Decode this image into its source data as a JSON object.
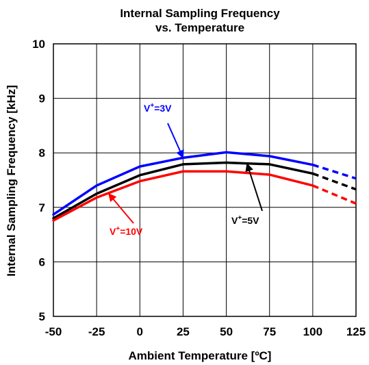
{
  "chart_data": {
    "type": "line",
    "title_line1": "Internal Sampling Frequency",
    "title_line2": "vs. Temperature",
    "xlabel": "Ambient Temperature [ºC]",
    "ylabel": "Internal Sampling Frequency [kHz]",
    "xlim": [
      -50,
      125
    ],
    "ylim": [
      5,
      10
    ],
    "xticks": [
      -50,
      -25,
      0,
      25,
      50,
      75,
      100,
      125
    ],
    "yticks": [
      5,
      6,
      7,
      8,
      9,
      10
    ],
    "grid": true,
    "series": [
      {
        "name": "V⁺=3V",
        "color": "#0000ff",
        "x": [
          -50,
          -25,
          0,
          25,
          50,
          75,
          100
        ],
        "values": [
          6.87,
          7.4,
          7.75,
          7.91,
          8.01,
          7.94,
          7.78
        ],
        "dashed_x": [
          100,
          125
        ],
        "dashed_values": [
          7.78,
          7.53
        ]
      },
      {
        "name": "V⁺=5V",
        "color": "#000000",
        "x": [
          -50,
          -25,
          0,
          25,
          50,
          75,
          100
        ],
        "values": [
          6.8,
          7.25,
          7.59,
          7.79,
          7.82,
          7.79,
          7.62
        ],
        "dashed_x": [
          100,
          125
        ],
        "dashed_values": [
          7.62,
          7.33
        ]
      },
      {
        "name": "V⁺=10V",
        "color": "#ff0000",
        "x": [
          -50,
          -25,
          0,
          25,
          50,
          75,
          100
        ],
        "values": [
          6.76,
          7.18,
          7.48,
          7.66,
          7.66,
          7.6,
          7.4
        ],
        "dashed_x": [
          100,
          125
        ],
        "dashed_values": [
          7.4,
          7.07
        ]
      }
    ],
    "annotations": [
      {
        "text_base": "V",
        "text_sup": "+",
        "text_tail": "=3V",
        "color": "#0000ff",
        "arrow_to": [
          25,
          7.91
        ]
      },
      {
        "text_base": "V",
        "text_sup": "+",
        "text_tail": "=5V",
        "color": "#000000",
        "arrow_to": [
          62,
          7.8
        ]
      },
      {
        "text_base": "V",
        "text_sup": "+",
        "text_tail": "=10V",
        "color": "#ff0000",
        "arrow_to": [
          -18,
          7.25
        ]
      }
    ]
  }
}
